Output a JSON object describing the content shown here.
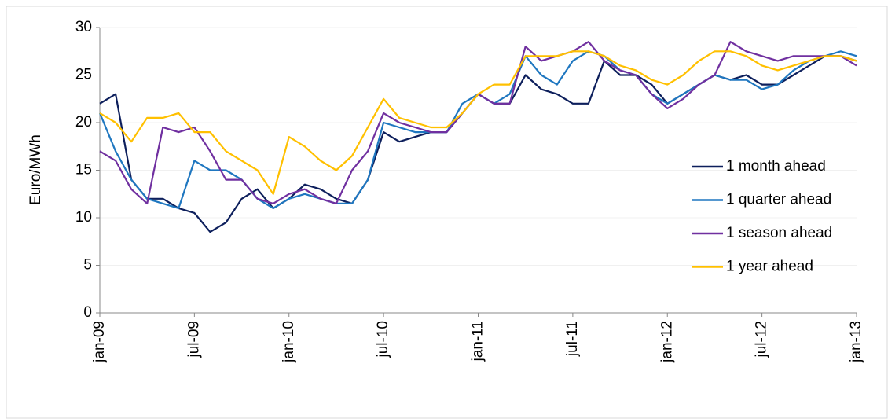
{
  "chart_data": {
    "type": "line",
    "ylabel": "Euro/MWh",
    "categories": [
      "jan-09",
      null,
      null,
      null,
      null,
      null,
      "jul-09",
      null,
      null,
      null,
      null,
      null,
      "jan-10",
      null,
      null,
      null,
      null,
      null,
      "jul-10",
      null,
      null,
      null,
      null,
      null,
      "jan-11",
      null,
      null,
      null,
      null,
      null,
      "jul-11",
      null,
      null,
      null,
      null,
      null,
      "jan-12",
      null,
      null,
      null,
      null,
      null,
      "jul-12",
      null,
      null,
      null,
      null,
      null,
      "jan-13"
    ],
    "series": [
      {
        "name": "1 month ahead",
        "color": "#0d1f5c",
        "values": [
          22,
          23,
          14,
          12,
          12,
          11,
          10.5,
          8.5,
          9.5,
          12,
          13,
          11,
          12,
          13.5,
          13,
          12,
          11.5,
          14,
          19,
          18,
          18.5,
          19,
          19,
          21,
          23,
          22,
          22,
          25,
          23.5,
          23,
          22,
          22,
          26.5,
          25,
          25,
          24,
          22,
          23,
          24,
          25,
          24.5,
          25,
          24,
          24,
          25,
          26,
          27,
          27,
          26.5
        ]
      },
      {
        "name": "1 quarter ahead",
        "color": "#1f77c0",
        "values": [
          21,
          17,
          14,
          12,
          11.5,
          11,
          16,
          15,
          15,
          14,
          12,
          11,
          12,
          12.5,
          12,
          11.5,
          11.5,
          14,
          20,
          19.5,
          19,
          19,
          19,
          22,
          23,
          22,
          23,
          27,
          25,
          24,
          26.5,
          27.5,
          27,
          25.5,
          25,
          23,
          22,
          23,
          24,
          25,
          24.5,
          24.5,
          23.5,
          24,
          25.5,
          26.5,
          27,
          27.5,
          27
        ]
      },
      {
        "name": "1 season ahead",
        "color": "#7030a0",
        "values": [
          17,
          16,
          13,
          11.5,
          19.5,
          19,
          19.5,
          17,
          14,
          14,
          12,
          11.5,
          12.5,
          13,
          12,
          11.5,
          15,
          17,
          21,
          20,
          19.5,
          19,
          19,
          21,
          23,
          22,
          22,
          28,
          26.5,
          27,
          27.5,
          28.5,
          26.5,
          25.5,
          25,
          23,
          21.5,
          22.5,
          24,
          25,
          28.5,
          27.5,
          27,
          26.5,
          27,
          27,
          27,
          27,
          26
        ]
      },
      {
        "name": "1 year ahead",
        "color": "#ffc000",
        "values": [
          21,
          20,
          18,
          20.5,
          20.5,
          21,
          19,
          19,
          17,
          16,
          15,
          12.5,
          18.5,
          17.5,
          16,
          15,
          16.5,
          19.5,
          22.5,
          20.5,
          20,
          19.5,
          19.5,
          21,
          23,
          24,
          24,
          27,
          27,
          27,
          27.5,
          27.5,
          27,
          26,
          25.5,
          24.5,
          24,
          25,
          26.5,
          27.5,
          27.5,
          27,
          26,
          25.5,
          26,
          26.5,
          27,
          27,
          26.5
        ]
      }
    ],
    "ylim": [
      0,
      30
    ],
    "yticks": [
      0,
      5,
      10,
      15,
      20,
      25,
      30
    ],
    "grid": true,
    "legend": "right"
  }
}
